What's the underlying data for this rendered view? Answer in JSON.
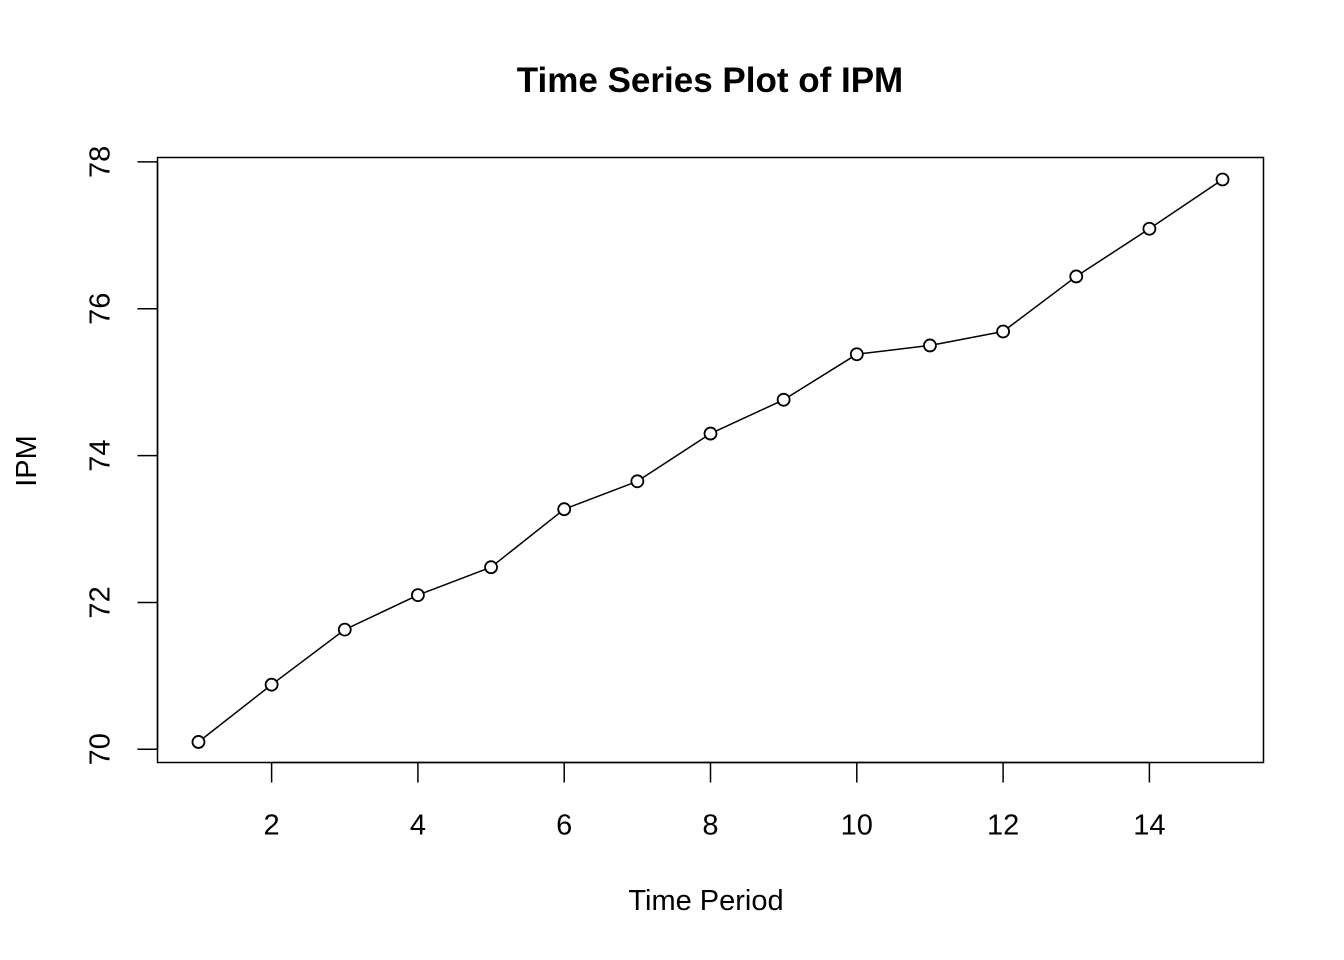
{
  "chart_data": {
    "type": "line",
    "title": "Time Series Plot of IPM",
    "xlabel": "Time Period",
    "ylabel": "IPM",
    "x": [
      1,
      2,
      3,
      4,
      5,
      6,
      7,
      8,
      9,
      10,
      11,
      12,
      13,
      14,
      15
    ],
    "series": [
      {
        "values": [
          70.1,
          70.88,
          71.63,
          72.1,
          72.48,
          73.27,
          73.65,
          74.3,
          74.76,
          75.38,
          75.5,
          75.69,
          76.44,
          77.09,
          77.76
        ]
      }
    ],
    "xlim": [
      0.44,
      15.56
    ],
    "ylim": [
      69.82,
      78.06
    ],
    "x_ticks": [
      2,
      4,
      6,
      8,
      10,
      12,
      14
    ],
    "y_ticks": [
      70,
      72,
      74,
      76,
      78
    ],
    "markers": "open-circle",
    "grid": false,
    "legend": "none",
    "colors": {
      "line": "#000000",
      "marker": "#000000",
      "background": "#ffffff"
    }
  }
}
